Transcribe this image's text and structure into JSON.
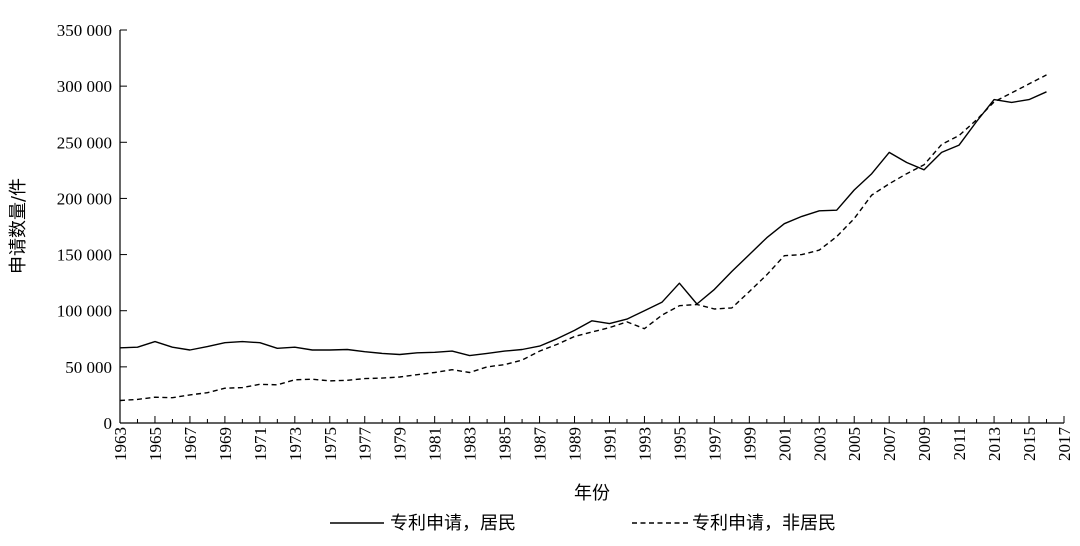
{
  "chart_data": {
    "type": "line",
    "xlabel": "年份",
    "ylabel": "申请数量/件",
    "xlim": [
      1963,
      2017
    ],
    "ylim": [
      0,
      350000
    ],
    "xticks": [
      1963,
      1965,
      1967,
      1969,
      1971,
      1973,
      1975,
      1977,
      1979,
      1981,
      1983,
      1985,
      1987,
      1989,
      1991,
      1993,
      1995,
      1997,
      1999,
      2001,
      2003,
      2005,
      2007,
      2009,
      2011,
      2013,
      2015,
      2017
    ],
    "yticks": [
      0,
      50000,
      100000,
      150000,
      200000,
      250000,
      300000,
      350000
    ],
    "ytick_labels": [
      "0",
      "50 000",
      "100 000",
      "150 000",
      "200 000",
      "250 000",
      "300 000",
      "350 000"
    ],
    "grid": false,
    "legend_position": "bottom",
    "series": [
      {
        "name": "专利申请，居民",
        "style": "solid",
        "color": "#000000",
        "x": [
          1963,
          1964,
          1965,
          1966,
          1967,
          1968,
          1969,
          1970,
          1971,
          1972,
          1973,
          1974,
          1975,
          1976,
          1977,
          1978,
          1979,
          1980,
          1981,
          1982,
          1983,
          1984,
          1985,
          1986,
          1987,
          1988,
          1989,
          1990,
          1991,
          1992,
          1993,
          1994,
          1995,
          1996,
          1997,
          1998,
          1999,
          2000,
          2001,
          2002,
          2003,
          2004,
          2005,
          2006,
          2007,
          2008,
          2009,
          2010,
          2011,
          2012,
          2013,
          2014,
          2015,
          2016
        ],
        "values": [
          67000,
          67500,
          72500,
          67500,
          65000,
          68000,
          71500,
          72500,
          71500,
          66500,
          67500,
          65000,
          65000,
          65500,
          63500,
          62000,
          61000,
          62500,
          63000,
          64000,
          60000,
          62000,
          64000,
          65500,
          68500,
          75000,
          82500,
          91000,
          88500,
          92500,
          100000,
          107500,
          124500,
          106000,
          119000,
          135000,
          150000,
          165000,
          177500,
          184000,
          189000,
          189500,
          207500,
          222000,
          241000,
          232000,
          225500,
          241000,
          247500,
          268500,
          288000,
          285500,
          288000,
          295000
        ]
      },
      {
        "name": "专利申请，非居民",
        "style": "dashed",
        "color": "#000000",
        "x": [
          1963,
          1964,
          1965,
          1966,
          1967,
          1968,
          1969,
          1970,
          1971,
          1972,
          1973,
          1974,
          1975,
          1976,
          1977,
          1978,
          1979,
          1980,
          1981,
          1982,
          1983,
          1984,
          1985,
          1986,
          1987,
          1988,
          1989,
          1990,
          1991,
          1992,
          1993,
          1994,
          1995,
          1996,
          1997,
          1998,
          1999,
          2000,
          2001,
          2002,
          2003,
          2004,
          2005,
          2006,
          2007,
          2008,
          2009,
          2010,
          2011,
          2012,
          2013,
          2014,
          2015,
          2016
        ],
        "values": [
          20000,
          21000,
          23000,
          22500,
          25000,
          27000,
          31000,
          31500,
          34500,
          34000,
          38500,
          39000,
          37500,
          38000,
          39500,
          40000,
          41000,
          43000,
          45000,
          47500,
          45000,
          50000,
          52000,
          56000,
          64000,
          70000,
          77000,
          81000,
          85000,
          90000,
          84000,
          96000,
          104500,
          105500,
          101500,
          102500,
          117000,
          132000,
          149000,
          150000,
          154000,
          166000,
          182000,
          203000,
          213000,
          222000,
          230000,
          248000,
          256000,
          270000,
          286000,
          294000,
          302000,
          310000
        ]
      }
    ]
  }
}
